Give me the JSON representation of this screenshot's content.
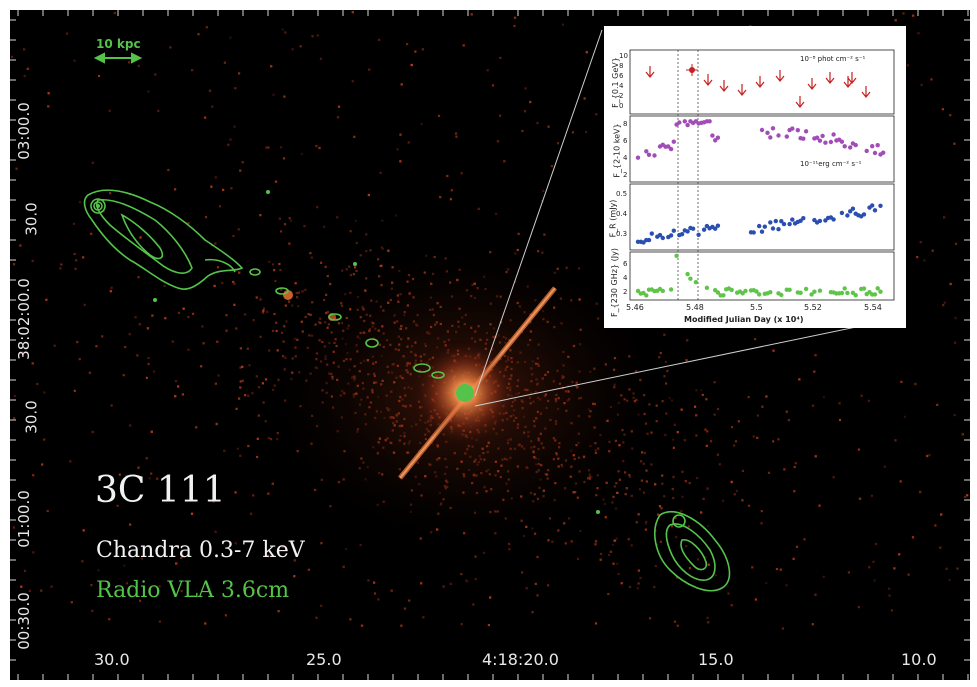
{
  "image": {
    "title": "3C 111",
    "legend_chandra": "Chandra 0.3-7 keV",
    "legend_radio": "Radio VLA 3.6cm",
    "scale_bar": "10 kpc",
    "colors": {
      "xray": "#d2562a",
      "radio": "#55c34a",
      "background": "#000000"
    }
  },
  "axes": {
    "y_ticks": [
      "03:00.0",
      "30.0",
      "38:02:00.0",
      "30.0",
      "01:00.0",
      "00:30.0"
    ],
    "x_ticks": [
      "30.0",
      "25.0",
      "4:18:20.0",
      "15.0",
      "10.0"
    ]
  },
  "inset": {
    "panels": [
      {
        "ylabel": "F_{0.1 GeV}",
        "ticks": [
          "0 2 4 6 8 10"
        ],
        "note": "10⁻⁸ phot cm⁻² s⁻¹"
      },
      {
        "ylabel": "F_{2-10 keV}",
        "ticks": [
          "2",
          "4",
          "6",
          "8"
        ],
        "note": "10⁻¹¹erg cm⁻² s⁻¹"
      },
      {
        "ylabel": "F_R (mJy)",
        "ticks": [
          "0.3",
          "0.4",
          "0.5"
        ],
        "note": ""
      },
      {
        "ylabel": "F_{230 GHz} (Jy)",
        "ticks": [
          "2",
          "4",
          "6"
        ],
        "note": ""
      }
    ],
    "x_ticks": [
      "5.46",
      "5.48",
      "5.5",
      "5.52",
      "5.54"
    ],
    "x_title": "Modified Julian Day (x 10⁴)"
  }
}
